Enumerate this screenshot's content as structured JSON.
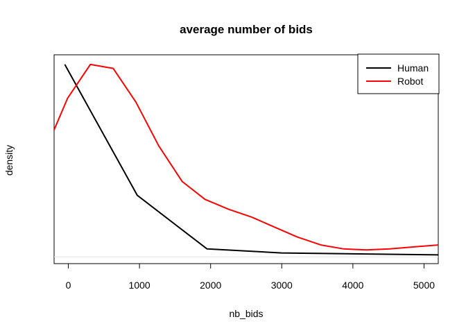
{
  "chart_data": {
    "type": "line",
    "title": "average number of bids",
    "xlabel": "nb_bids",
    "ylabel": "density",
    "xlim": [
      -200,
      5200
    ],
    "ylim": [
      0,
      1
    ],
    "x_ticks": [
      0,
      1000,
      2000,
      3000,
      4000,
      5000
    ],
    "x_tick_labels": [
      "0",
      "1000",
      "2000",
      "3000",
      "4000",
      "5000"
    ],
    "y_ticks_shown": false,
    "legend_position": "top-right",
    "baseline": 0.02,
    "series": [
      {
        "name": "Human",
        "color": "#000000",
        "x": [
          -50,
          970,
          1950,
          3000,
          5200
        ],
        "y": [
          0.99,
          0.33,
          0.06,
          0.04,
          0.03
        ]
      },
      {
        "name": "Robot",
        "color": "#ff0000",
        "x": [
          -200,
          -10,
          310,
          630,
          950,
          1270,
          1600,
          1920,
          2250,
          2580,
          2900,
          3220,
          3550,
          3870,
          4190,
          4520,
          4840,
          5200
        ],
        "y": [
          0.66,
          0.82,
          0.99,
          0.97,
          0.8,
          0.58,
          0.4,
          0.31,
          0.26,
          0.22,
          0.17,
          0.12,
          0.08,
          0.06,
          0.055,
          0.06,
          0.07,
          0.08
        ]
      }
    ]
  }
}
